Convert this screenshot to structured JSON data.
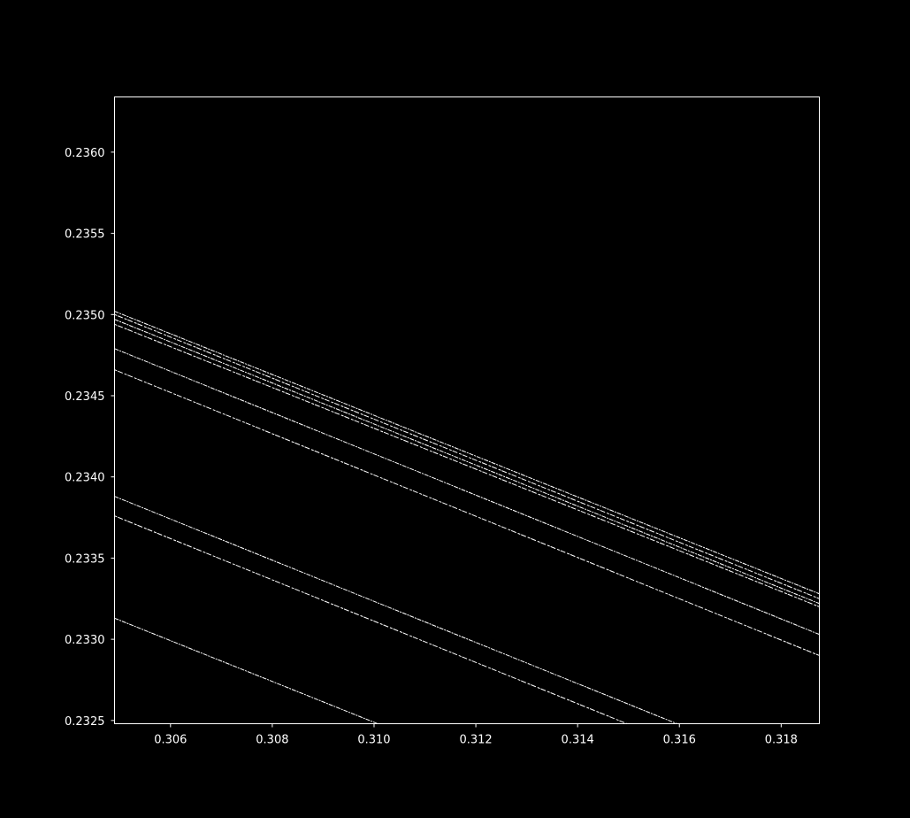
{
  "chart_data": {
    "type": "line",
    "title": "",
    "xlabel": "",
    "ylabel": "",
    "xlim": [
      0.3049,
      0.31875
    ],
    "ylim": [
      0.23248,
      0.23634
    ],
    "xticks": [
      {
        "value": 0.306,
        "label": "0.306"
      },
      {
        "value": 0.308,
        "label": "0.308"
      },
      {
        "value": 0.31,
        "label": "0.310"
      },
      {
        "value": 0.312,
        "label": "0.312"
      },
      {
        "value": 0.314,
        "label": "0.314"
      },
      {
        "value": 0.316,
        "label": "0.316"
      },
      {
        "value": 0.318,
        "label": "0.318"
      }
    ],
    "yticks": [
      {
        "value": 0.2325,
        "label": "0.2325"
      },
      {
        "value": 0.233,
        "label": "0.2330"
      },
      {
        "value": 0.2335,
        "label": "0.2335"
      },
      {
        "value": 0.234,
        "label": "0.2340"
      },
      {
        "value": 0.2345,
        "label": "0.2345"
      },
      {
        "value": 0.235,
        "label": "0.2350"
      },
      {
        "value": 0.2355,
        "label": "0.2355"
      },
      {
        "value": 0.236,
        "label": "0.2360"
      }
    ],
    "grid": false,
    "legend": "none",
    "colors": {
      "background": "#000000",
      "foreground": "#ffffff",
      "series": "#ffffff"
    },
    "series": [
      {
        "x": [
          0.3049,
          0.31875
        ],
        "y": [
          0.23502,
          0.23328
        ]
      },
      {
        "x": [
          0.3049,
          0.31875
        ],
        "y": [
          0.235,
          0.23325
        ]
      },
      {
        "x": [
          0.3049,
          0.31875
        ],
        "y": [
          0.23497,
          0.23322
        ]
      },
      {
        "x": [
          0.3049,
          0.31875
        ],
        "y": [
          0.23494,
          0.2332
        ]
      },
      {
        "x": [
          0.3049,
          0.31875
        ],
        "y": [
          0.23479,
          0.23303
        ]
      },
      {
        "x": [
          0.3049,
          0.31875
        ],
        "y": [
          0.23466,
          0.2329
        ]
      },
      {
        "x": [
          0.3049,
          0.31595
        ],
        "y": [
          0.23388,
          0.23248
        ]
      },
      {
        "x": [
          0.3049,
          0.31497
        ],
        "y": [
          0.23376,
          0.23248
        ]
      },
      {
        "x": [
          0.3049,
          0.31007
        ],
        "y": [
          0.23313,
          0.23248
        ]
      }
    ]
  }
}
